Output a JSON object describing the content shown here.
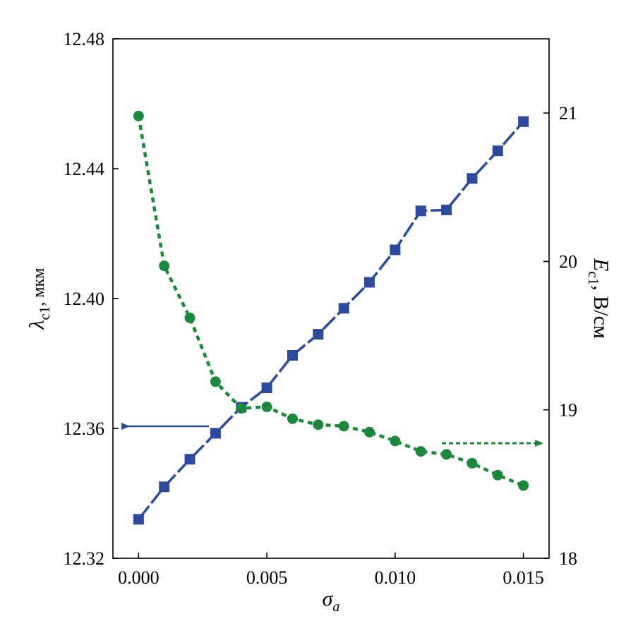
{
  "chart_data": {
    "type": "line",
    "title": "",
    "xlabel": {
      "symbol": "σ",
      "subscript": "a"
    },
    "ylabel_left": {
      "symbol": "λ",
      "subscript": "c1",
      "unit": ", мкм"
    },
    "ylabel_right": {
      "symbol": "E",
      "subscript": "c1",
      "unit": ", В/см"
    },
    "xlim": [
      -0.001,
      0.016
    ],
    "ylim_left": [
      12.32,
      12.48
    ],
    "ylim_right": [
      18,
      21.5
    ],
    "x_ticks": [
      0.0,
      0.005,
      0.01,
      0.015
    ],
    "x_tick_labels": [
      "0.000",
      "0.005",
      "0.010",
      "0.015"
    ],
    "y_left_ticks": [
      12.32,
      12.36,
      12.4,
      12.44,
      12.48
    ],
    "y_left_tick_labels": [
      "12.32",
      "12.36",
      "12.40",
      "12.44",
      "12.48"
    ],
    "y_right_ticks": [
      18,
      19,
      20,
      21
    ],
    "y_right_tick_labels": [
      "18",
      "19",
      "20",
      "21"
    ],
    "grid": false,
    "legend": "none",
    "series": [
      {
        "axis": "left",
        "marker": "square",
        "line_style": "dashed",
        "color": "#2b4a9e",
        "x": [
          0.0,
          0.001,
          0.002,
          0.003,
          0.004,
          0.005,
          0.006,
          0.007,
          0.008,
          0.009,
          0.01,
          0.011,
          0.012,
          0.013,
          0.014,
          0.015
        ],
        "y": [
          12.332,
          12.342,
          12.3505,
          12.3585,
          12.3665,
          12.3725,
          12.3825,
          12.389,
          12.397,
          12.405,
          12.415,
          12.427,
          12.4273,
          12.437,
          12.4455,
          12.4545
        ]
      },
      {
        "axis": "right",
        "marker": "circle",
        "line_style": "dotted",
        "color": "#1a8a3a",
        "x": [
          0.0,
          0.001,
          0.002,
          0.003,
          0.004,
          0.005,
          0.006,
          0.007,
          0.008,
          0.009,
          0.01,
          0.011,
          0.012,
          0.013,
          0.014,
          0.015
        ],
        "y": [
          20.98,
          19.97,
          19.62,
          19.19,
          19.01,
          19.02,
          18.94,
          18.9,
          18.89,
          18.85,
          18.79,
          18.72,
          18.7,
          18.64,
          18.56,
          18.49
        ]
      }
    ],
    "annotations": [
      {
        "type": "arrow",
        "target": "left-axis",
        "color": "#2b4a9e",
        "style": "solid"
      },
      {
        "type": "arrow",
        "target": "right-axis",
        "color": "#1a8a3a",
        "style": "dotted"
      }
    ]
  }
}
